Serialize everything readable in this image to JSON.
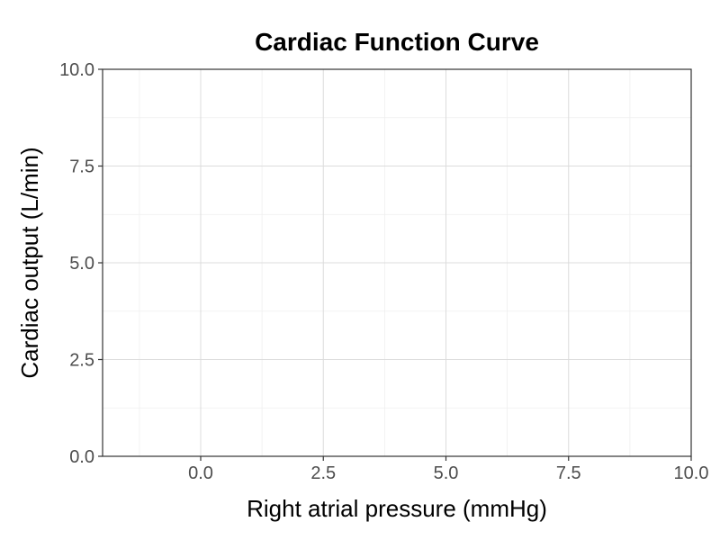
{
  "chart_data": {
    "type": "line",
    "title": "Cardiac Function Curve",
    "xlabel": "Right atrial pressure (mmHg)",
    "ylabel": "Cardiac output (L/min)",
    "xlim": [
      -2,
      10
    ],
    "ylim": [
      0,
      10
    ],
    "x_ticks": [
      0,
      2.5,
      5,
      7.5,
      10
    ],
    "x_tick_labels": [
      "0.0",
      "2.5",
      "5.0",
      "7.5",
      "10.0"
    ],
    "y_ticks": [
      0,
      2.5,
      5,
      7.5,
      10
    ],
    "y_tick_labels": [
      "0.0",
      "2.5",
      "5.0",
      "7.5",
      "10.0"
    ],
    "grid": true,
    "series": []
  }
}
